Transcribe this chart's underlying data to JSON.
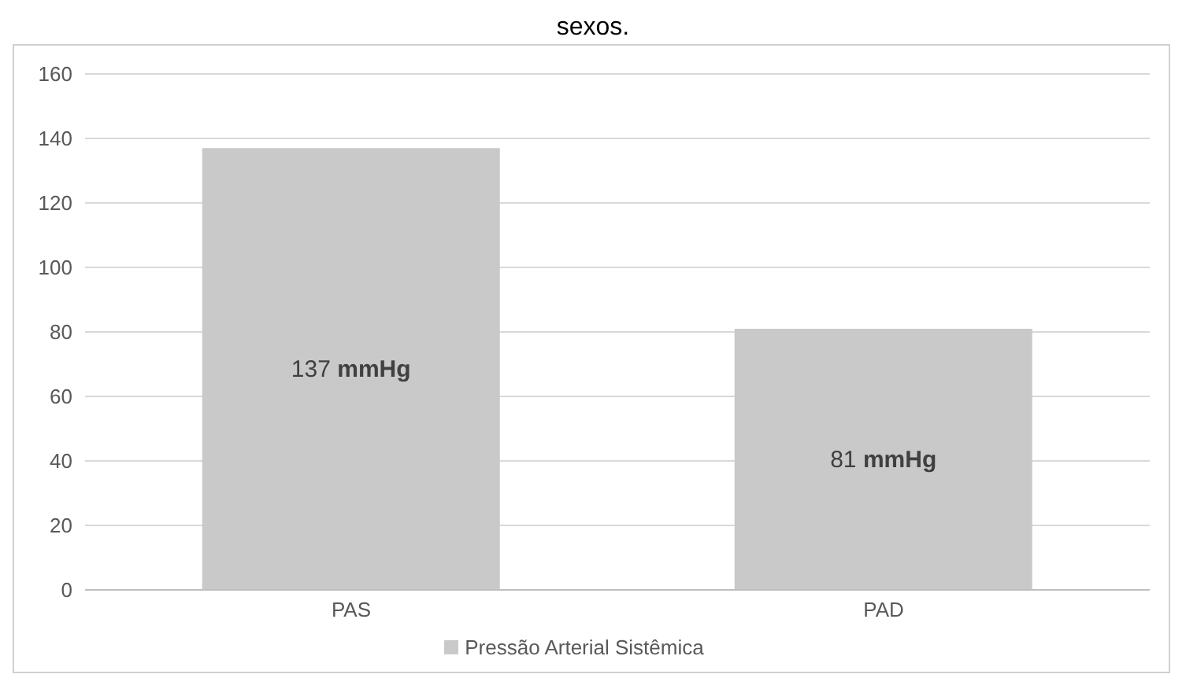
{
  "chart_data": {
    "type": "bar",
    "title": "sexos.",
    "categories": [
      "PAS",
      "PAD"
    ],
    "series": [
      {
        "name": "Pressão Arterial Sistêmica",
        "color": "#c9c9c9",
        "values": [
          137,
          81
        ]
      }
    ],
    "value_labels": [
      "137 mmHg",
      "81 mmHg"
    ],
    "ylim": [
      0,
      160
    ],
    "yticks": [
      0,
      20,
      40,
      60,
      80,
      100,
      120,
      140,
      160
    ],
    "grid": "y",
    "legend": "bottom"
  }
}
